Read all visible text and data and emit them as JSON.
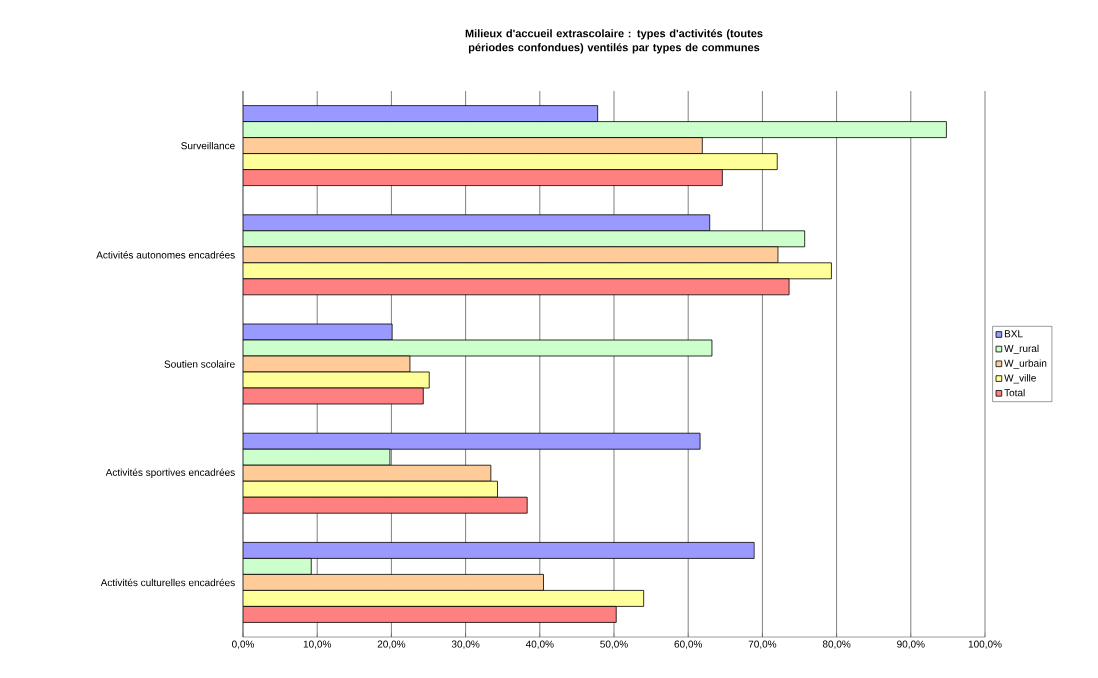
{
  "chart_data": {
    "type": "bar",
    "orientation": "horizontal",
    "title": "Milieux d'accueil extrascolaire : types d'activités (toutes périodes confondues) ventilés par types de communes",
    "categories": [
      "Surveillance",
      "Activités autonomes encadrées",
      "Soutien scolaire",
      "Activités sportives encadrées",
      "Activités culturelles encadrées"
    ],
    "series": [
      {
        "name": "BXL",
        "color": "#9999ff",
        "values": [
          47.8,
          62.9,
          20.1,
          61.6,
          68.9
        ]
      },
      {
        "name": "W_rural",
        "color": "#ccffcc",
        "values": [
          94.8,
          75.7,
          63.2,
          19.8,
          9.2
        ]
      },
      {
        "name": "W_urbain",
        "color": "#ffcc99",
        "values": [
          61.9,
          72.1,
          22.5,
          33.4,
          40.5
        ]
      },
      {
        "name": "W_ville",
        "color": "#ffff99",
        "values": [
          72.0,
          79.3,
          25.1,
          34.3,
          54.0
        ]
      },
      {
        "name": "Total",
        "color": "#ff8080",
        "values": [
          64.6,
          73.6,
          24.3,
          38.3,
          50.3
        ]
      }
    ],
    "xlim": [
      0,
      100
    ],
    "xticks": [
      {
        "value": 0,
        "label": "0,0%"
      },
      {
        "value": 10,
        "label": "10,0%"
      },
      {
        "value": 20,
        "label": "20,0%"
      },
      {
        "value": 30,
        "label": "30,0%"
      },
      {
        "value": 40,
        "label": "40,0%"
      },
      {
        "value": 50,
        "label": "50,0%"
      },
      {
        "value": 60,
        "label": "60,0%"
      },
      {
        "value": 70,
        "label": "70,0%"
      },
      {
        "value": 80,
        "label": "80,0%"
      },
      {
        "value": 90,
        "label": "90,0%"
      },
      {
        "value": 100,
        "label": "100,0%"
      }
    ],
    "grid": "x",
    "legend": "right"
  }
}
